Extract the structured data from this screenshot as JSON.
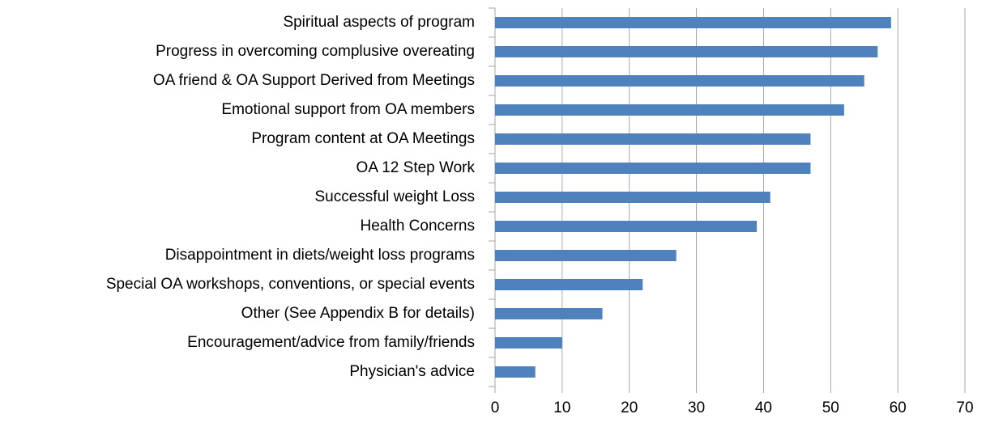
{
  "chart_data": {
    "type": "barh",
    "categories": [
      "Spiritual aspects of program",
      "Progress in overcoming complusive overeating",
      "OA friend & OA Support Derived from Meetings",
      "Emotional support from OA members",
      "Program content at OA Meetings",
      "OA 12 Step Work",
      "Successful weight Loss",
      "Health Concerns",
      "Disappointment in diets/weight loss programs",
      "Special OA workshops, conventions, or special events",
      "Other (See Appendix B for details)",
      "Encouragement/advice from family/friends",
      "Physician's advice"
    ],
    "values": [
      59,
      57,
      55,
      52,
      47,
      47,
      41,
      39,
      27,
      22,
      16,
      10,
      6
    ],
    "color": "#4f81bd",
    "xlim": [
      0,
      70
    ],
    "xticks": [
      0,
      10,
      20,
      30,
      40,
      50,
      60,
      70
    ],
    "grid": true
  }
}
